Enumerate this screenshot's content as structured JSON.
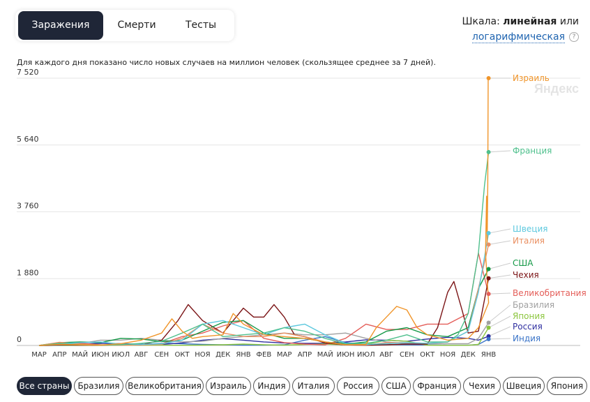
{
  "tabs": [
    {
      "label": "Заражения",
      "active": true
    },
    {
      "label": "Смерти",
      "active": false
    },
    {
      "label": "Тесты",
      "active": false
    }
  ],
  "scale": {
    "prefix": "Шкала:",
    "selected": "линейная",
    "or": "или",
    "alternative": "логарифмическая",
    "help": "?"
  },
  "note": "Для каждого дня показано число новых случаев на миллион человек (скользящее среднее за 7 дней).",
  "watermark": "Яндекс",
  "countries": [
    "Все страны",
    "Бразилия",
    "Великобритания",
    "Израиль",
    "Индия",
    "Италия",
    "Россия",
    "США",
    "Франция",
    "Чехия",
    "Швеция",
    "Япония"
  ],
  "active_country": "Все страны",
  "chart_data": {
    "type": "line",
    "title": "",
    "xlabel": "",
    "ylabel": "",
    "ylim": [
      0,
      7520
    ],
    "yticks": [
      0,
      1880,
      3760,
      5640,
      7520
    ],
    "ytick_labels": [
      "0",
      "1 880",
      "3 760",
      "5 640",
      "7 520"
    ],
    "grid": true,
    "x_tick_labels": [
      "МАР",
      "АПР",
      "МАЙ",
      "ИЮН",
      "ИЮЛ",
      "АВГ",
      "СЕН",
      "ОКТ",
      "НОЯ",
      "ДЕК",
      "ЯНВ",
      "ФЕВ",
      "МАР",
      "АПР",
      "МАЙ",
      "ИЮН",
      "ИЮЛ",
      "АВГ",
      "СЕН",
      "ОКТ",
      "НОЯ",
      "ДЕК",
      "ЯНВ"
    ],
    "x_unit": "month index (0 = March 2020)",
    "series": [
      {
        "name": "Израиль",
        "color": "#f0952a",
        "x": [
          0,
          1,
          2,
          3,
          4,
          5,
          6,
          6.5,
          7,
          7.5,
          8,
          9,
          9.5,
          10,
          11,
          12,
          13,
          14,
          15,
          16,
          16.5,
          17,
          17.5,
          18,
          18.5,
          19,
          20,
          21,
          21.5,
          22,
          21.85,
          21.9,
          21.93,
          21.96,
          21.98,
          22.0
        ],
        "y": [
          0,
          30,
          20,
          10,
          50,
          150,
          350,
          750,
          400,
          200,
          250,
          300,
          900,
          600,
          300,
          250,
          200,
          100,
          20,
          30,
          500,
          800,
          1100,
          1000,
          500,
          300,
          150,
          200,
          500,
          1200,
          2600,
          4200,
          2900,
          4500,
          7800,
          7520
        ],
        "end_label": "Израиль",
        "end_value": 7520
      },
      {
        "name": "Франция",
        "color": "#4fc08d",
        "x": [
          0,
          1,
          2,
          3,
          4,
          5,
          6,
          7,
          8,
          9,
          10,
          11,
          12,
          13,
          14,
          15,
          16,
          17,
          18,
          19,
          20,
          20.5,
          21,
          21.5,
          21.8,
          22.0
        ],
        "y": [
          0,
          60,
          20,
          10,
          20,
          60,
          120,
          350,
          600,
          250,
          300,
          350,
          500,
          400,
          200,
          50,
          60,
          150,
          300,
          100,
          100,
          300,
          900,
          2600,
          4500,
          5440
        ],
        "end_label": "Франция",
        "end_value": 5440
      },
      {
        "name": "Швеция",
        "color": "#5cc8de",
        "x": [
          0,
          1,
          2,
          3,
          4,
          5,
          6,
          7,
          8,
          9,
          10,
          11,
          12,
          13,
          14,
          15,
          16,
          17,
          18,
          19,
          20,
          21,
          21.5,
          22.0
        ],
        "y": [
          0,
          50,
          80,
          100,
          40,
          30,
          50,
          150,
          600,
          700,
          500,
          300,
          500,
          600,
          300,
          60,
          30,
          50,
          80,
          60,
          100,
          400,
          1500,
          3160
        ],
        "end_label": "Швеция",
        "end_value": 3160
      },
      {
        "name": "Италия",
        "color": "#ea9062",
        "x": [
          0,
          1,
          2,
          3,
          4,
          5,
          6,
          7,
          8,
          9,
          10,
          11,
          12,
          13,
          14,
          15,
          16,
          17,
          18,
          19,
          20,
          21,
          21.5,
          22.0
        ],
        "y": [
          0,
          90,
          40,
          10,
          5,
          20,
          30,
          200,
          600,
          350,
          250,
          250,
          350,
          250,
          100,
          20,
          15,
          80,
          80,
          60,
          100,
          400,
          1600,
          2840
        ],
        "end_label": "Италия",
        "end_value": 2840
      },
      {
        "name": "США",
        "color": "#159947",
        "x": [
          0,
          1,
          2,
          3,
          4,
          5,
          6,
          7,
          8,
          9,
          10,
          11,
          12,
          13,
          14,
          15,
          16,
          17,
          18,
          19,
          20,
          21,
          21.5,
          22.0
        ],
        "y": [
          0,
          80,
          100,
          80,
          200,
          180,
          110,
          150,
          400,
          650,
          700,
          350,
          200,
          200,
          100,
          40,
          100,
          400,
          500,
          300,
          250,
          500,
          1600,
          2150
        ],
        "end_label": "США",
        "end_value": 2150
      },
      {
        "name": "Чехия",
        "color": "#7b1416",
        "x": [
          0,
          1,
          2,
          3,
          4,
          5,
          6,
          6.8,
          7.3,
          8,
          9,
          9.5,
          10,
          10.5,
          11,
          11.5,
          12,
          12.5,
          13,
          14,
          15,
          16,
          17,
          18,
          19,
          19.5,
          20,
          20.3,
          20.7,
          21,
          21.5,
          22.0
        ],
        "y": [
          0,
          20,
          10,
          5,
          20,
          20,
          150,
          700,
          1150,
          700,
          350,
          700,
          1050,
          800,
          800,
          1150,
          800,
          300,
          250,
          70,
          15,
          5,
          20,
          40,
          40,
          500,
          1500,
          1800,
          1000,
          350,
          400,
          1890
        ],
        "end_label": "Чехия",
        "end_value": 1890
      },
      {
        "name": "Великобритания",
        "color": "#e45e59",
        "x": [
          0,
          1,
          2,
          3,
          4,
          5,
          6,
          7,
          8,
          9,
          10,
          11,
          12,
          13,
          14,
          15,
          16,
          17,
          18,
          19,
          20,
          21,
          21.5,
          22.0
        ],
        "y": [
          0,
          70,
          60,
          20,
          10,
          15,
          50,
          250,
          350,
          550,
          700,
          200,
          80,
          40,
          20,
          200,
          600,
          450,
          450,
          600,
          600,
          900,
          2600,
          1450
        ],
        "end_label": "Великобритания",
        "end_value": 1450
      },
      {
        "name": "Бразилия",
        "color": "#a0a0a0",
        "x": [
          0,
          1,
          2,
          3,
          4,
          5,
          6,
          7,
          8,
          9,
          10,
          11,
          12,
          13,
          14,
          15,
          16,
          17,
          18,
          19,
          20,
          21,
          21.5,
          22.0
        ],
        "y": [
          0,
          10,
          50,
          150,
          150,
          200,
          150,
          100,
          120,
          200,
          250,
          300,
          350,
          300,
          300,
          350,
          200,
          100,
          50,
          50,
          50,
          50,
          200,
          640
        ],
        "end_label": "Бразилия",
        "end_value": 640
      },
      {
        "name": "Япония",
        "color": "#8cc63f",
        "x": [
          0,
          1,
          2,
          3,
          4,
          5,
          6,
          7,
          8,
          9,
          10,
          11,
          12,
          13,
          14,
          15,
          16,
          17,
          18,
          19,
          20,
          21,
          21.5,
          22.0
        ],
        "y": [
          0,
          3,
          3,
          2,
          5,
          10,
          8,
          5,
          10,
          20,
          40,
          20,
          10,
          30,
          40,
          20,
          30,
          150,
          120,
          10,
          5,
          5,
          30,
          500
        ],
        "end_label": "Япония",
        "end_value": 500
      },
      {
        "name": "Россия",
        "color": "#2f2fa0",
        "x": [
          0,
          1,
          2,
          3,
          4,
          5,
          6,
          7,
          8,
          9,
          10,
          11,
          12,
          13,
          14,
          15,
          16,
          17,
          18,
          19,
          20,
          21,
          21.5,
          22.0
        ],
        "y": [
          0,
          5,
          40,
          60,
          50,
          35,
          30,
          70,
          150,
          190,
          150,
          100,
          70,
          60,
          60,
          100,
          160,
          150,
          120,
          180,
          230,
          200,
          150,
          260
        ],
        "end_label": "Россия",
        "end_value": 260
      },
      {
        "name": "Индия",
        "color": "#3a74c8",
        "x": [
          0,
          1,
          2,
          3,
          4,
          5,
          6,
          7,
          8,
          9,
          10,
          11,
          12,
          13,
          14,
          15,
          16,
          17,
          18,
          19,
          20,
          21,
          21.5,
          22.0
        ],
        "y": [
          0,
          0,
          2,
          5,
          10,
          30,
          60,
          50,
          30,
          20,
          10,
          10,
          20,
          150,
          250,
          80,
          30,
          25,
          20,
          15,
          8,
          8,
          30,
          180
        ],
        "end_label": "Индия",
        "end_value": 180
      }
    ]
  }
}
